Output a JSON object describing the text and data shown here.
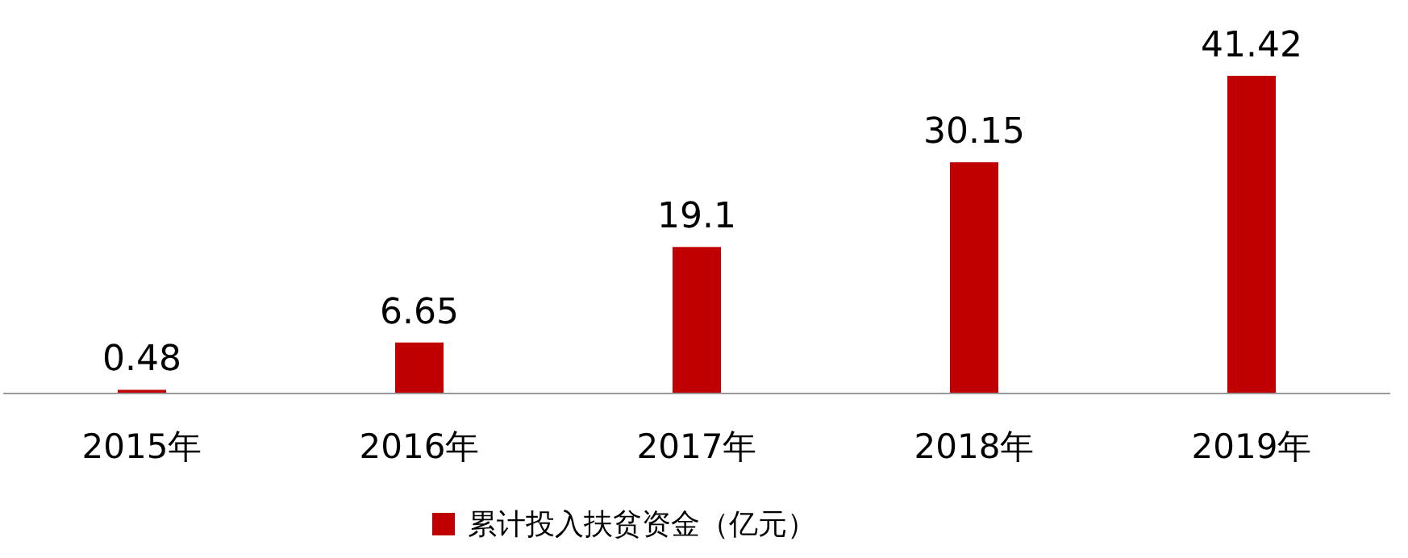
{
  "chart_data": {
    "type": "bar",
    "categories": [
      "2015年",
      "2016年",
      "2017年",
      "2018年",
      "2019年"
    ],
    "series": [
      {
        "name": "累计投入扶贫资金（亿元）",
        "color": "#c00000",
        "values": [
          0.48,
          6.65,
          19.1,
          30.15,
          41.42
        ]
      }
    ],
    "data_labels": true,
    "legend": "bottom"
  }
}
